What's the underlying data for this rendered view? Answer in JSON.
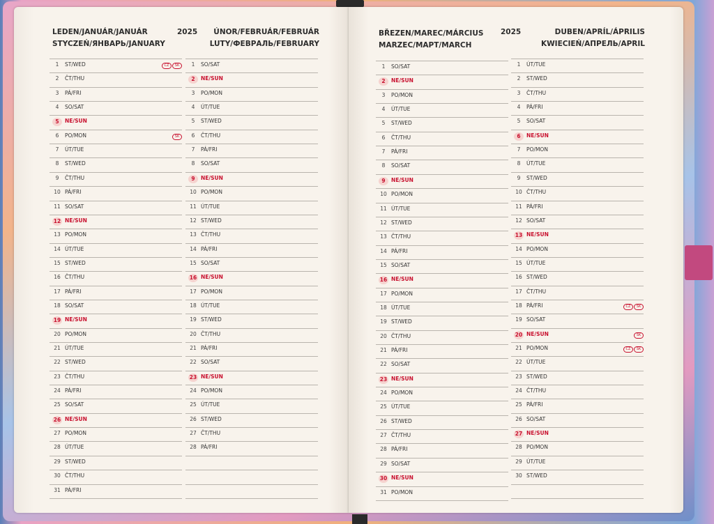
{
  "pages": [
    {
      "year": "2025",
      "months": [
        {
          "title": [
            "LEDEN/JANUÁR/JANUÁR",
            "STYCZEŃ/ЯНВАРЬ/JANUARY"
          ],
          "days": [
            {
              "d": 1,
              "w": "ST/WED",
              "badges": [
                "CZ",
                "SK"
              ]
            },
            {
              "d": 2,
              "w": "ČT/THU"
            },
            {
              "d": 3,
              "w": "PÁ/FRI"
            },
            {
              "d": 4,
              "w": "SO/SAT"
            },
            {
              "d": 5,
              "w": "NE/SUN",
              "red": true
            },
            {
              "d": 6,
              "w": "PO/MON",
              "badges": [
                "SK"
              ]
            },
            {
              "d": 7,
              "w": "ÚT/TUE"
            },
            {
              "d": 8,
              "w": "ST/WED"
            },
            {
              "d": 9,
              "w": "ČT/THU"
            },
            {
              "d": 10,
              "w": "PÁ/FRI"
            },
            {
              "d": 11,
              "w": "SO/SAT"
            },
            {
              "d": 12,
              "w": "NE/SUN",
              "red": true
            },
            {
              "d": 13,
              "w": "PO/MON"
            },
            {
              "d": 14,
              "w": "ÚT/TUE"
            },
            {
              "d": 15,
              "w": "ST/WED"
            },
            {
              "d": 16,
              "w": "ČT/THU"
            },
            {
              "d": 17,
              "w": "PÁ/FRI"
            },
            {
              "d": 18,
              "w": "SO/SAT"
            },
            {
              "d": 19,
              "w": "NE/SUN",
              "red": true
            },
            {
              "d": 20,
              "w": "PO/MON"
            },
            {
              "d": 21,
              "w": "ÚT/TUE"
            },
            {
              "d": 22,
              "w": "ST/WED"
            },
            {
              "d": 23,
              "w": "ČT/THU"
            },
            {
              "d": 24,
              "w": "PÁ/FRI"
            },
            {
              "d": 25,
              "w": "SO/SAT"
            },
            {
              "d": 26,
              "w": "NE/SUN",
              "red": true
            },
            {
              "d": 27,
              "w": "PO/MON"
            },
            {
              "d": 28,
              "w": "ÚT/TUE"
            },
            {
              "d": 29,
              "w": "ST/WED"
            },
            {
              "d": 30,
              "w": "ČT/THU"
            },
            {
              "d": 31,
              "w": "PÁ/FRI"
            }
          ]
        },
        {
          "title": [
            "ÚNOR/FEBRUÁR/FEBRUÁR",
            "LUTY/ФЕВРАЛЬ/FEBRUARY"
          ],
          "days": [
            {
              "d": 1,
              "w": "SO/SAT"
            },
            {
              "d": 2,
              "w": "NE/SUN",
              "red": true
            },
            {
              "d": 3,
              "w": "PO/MON"
            },
            {
              "d": 4,
              "w": "ÚT/TUE"
            },
            {
              "d": 5,
              "w": "ST/WED"
            },
            {
              "d": 6,
              "w": "ČT/THU"
            },
            {
              "d": 7,
              "w": "PÁ/FRI"
            },
            {
              "d": 8,
              "w": "SO/SAT"
            },
            {
              "d": 9,
              "w": "NE/SUN",
              "red": true
            },
            {
              "d": 10,
              "w": "PO/MON"
            },
            {
              "d": 11,
              "w": "ÚT/TUE"
            },
            {
              "d": 12,
              "w": "ST/WED"
            },
            {
              "d": 13,
              "w": "ČT/THU"
            },
            {
              "d": 14,
              "w": "PÁ/FRI"
            },
            {
              "d": 15,
              "w": "SO/SAT"
            },
            {
              "d": 16,
              "w": "NE/SUN",
              "red": true
            },
            {
              "d": 17,
              "w": "PO/MON"
            },
            {
              "d": 18,
              "w": "ÚT/TUE"
            },
            {
              "d": 19,
              "w": "ST/WED"
            },
            {
              "d": 20,
              "w": "ČT/THU"
            },
            {
              "d": 21,
              "w": "PÁ/FRI"
            },
            {
              "d": 22,
              "w": "SO/SAT"
            },
            {
              "d": 23,
              "w": "NE/SUN",
              "red": true
            },
            {
              "d": 24,
              "w": "PO/MON"
            },
            {
              "d": 25,
              "w": "ÚT/TUE"
            },
            {
              "d": 26,
              "w": "ST/WED"
            },
            {
              "d": 27,
              "w": "ČT/THU"
            },
            {
              "d": 28,
              "w": "PÁ/FRI"
            }
          ]
        }
      ]
    },
    {
      "year": "2025",
      "months": [
        {
          "title": [
            "BŘEZEN/MAREC/MÁRCIUS",
            "MARZEC/МАРТ/MARCH"
          ],
          "days": [
            {
              "d": 1,
              "w": "SO/SAT"
            },
            {
              "d": 2,
              "w": "NE/SUN",
              "red": true
            },
            {
              "d": 3,
              "w": "PO/MON"
            },
            {
              "d": 4,
              "w": "ÚT/TUE"
            },
            {
              "d": 5,
              "w": "ST/WED"
            },
            {
              "d": 6,
              "w": "ČT/THU"
            },
            {
              "d": 7,
              "w": "PÁ/FRI"
            },
            {
              "d": 8,
              "w": "SO/SAT"
            },
            {
              "d": 9,
              "w": "NE/SUN",
              "red": true
            },
            {
              "d": 10,
              "w": "PO/MON"
            },
            {
              "d": 11,
              "w": "ÚT/TUE"
            },
            {
              "d": 12,
              "w": "ST/WED"
            },
            {
              "d": 13,
              "w": "ČT/THU"
            },
            {
              "d": 14,
              "w": "PÁ/FRI"
            },
            {
              "d": 15,
              "w": "SO/SAT"
            },
            {
              "d": 16,
              "w": "NE/SUN",
              "red": true
            },
            {
              "d": 17,
              "w": "PO/MON"
            },
            {
              "d": 18,
              "w": "ÚT/TUE"
            },
            {
              "d": 19,
              "w": "ST/WED"
            },
            {
              "d": 20,
              "w": "ČT/THU"
            },
            {
              "d": 21,
              "w": "PÁ/FRI"
            },
            {
              "d": 22,
              "w": "SO/SAT"
            },
            {
              "d": 23,
              "w": "NE/SUN",
              "red": true
            },
            {
              "d": 24,
              "w": "PO/MON"
            },
            {
              "d": 25,
              "w": "ÚT/TUE"
            },
            {
              "d": 26,
              "w": "ST/WED"
            },
            {
              "d": 27,
              "w": "ČT/THU"
            },
            {
              "d": 28,
              "w": "PÁ/FRI"
            },
            {
              "d": 29,
              "w": "SO/SAT"
            },
            {
              "d": 30,
              "w": "NE/SUN",
              "red": true
            },
            {
              "d": 31,
              "w": "PO/MON"
            }
          ]
        },
        {
          "title": [
            "DUBEN/APRÍL/ÁPRILIS",
            "KWIECIEŃ/АПРЕЛЬ/APRIL"
          ],
          "days": [
            {
              "d": 1,
              "w": "ÚT/TUE"
            },
            {
              "d": 2,
              "w": "ST/WED"
            },
            {
              "d": 3,
              "w": "ČT/THU"
            },
            {
              "d": 4,
              "w": "PÁ/FRI"
            },
            {
              "d": 5,
              "w": "SO/SAT"
            },
            {
              "d": 6,
              "w": "NE/SUN",
              "red": true
            },
            {
              "d": 7,
              "w": "PO/MON"
            },
            {
              "d": 8,
              "w": "ÚT/TUE"
            },
            {
              "d": 9,
              "w": "ST/WED"
            },
            {
              "d": 10,
              "w": "ČT/THU"
            },
            {
              "d": 11,
              "w": "PÁ/FRI"
            },
            {
              "d": 12,
              "w": "SO/SAT"
            },
            {
              "d": 13,
              "w": "NE/SUN",
              "red": true
            },
            {
              "d": 14,
              "w": "PO/MON"
            },
            {
              "d": 15,
              "w": "ÚT/TUE"
            },
            {
              "d": 16,
              "w": "ST/WED"
            },
            {
              "d": 17,
              "w": "ČT/THU"
            },
            {
              "d": 18,
              "w": "PÁ/FRI",
              "badges": [
                "CZ",
                "SK"
              ]
            },
            {
              "d": 19,
              "w": "SO/SAT"
            },
            {
              "d": 20,
              "w": "NE/SUN",
              "red": true,
              "badges": [
                "SK"
              ]
            },
            {
              "d": 21,
              "w": "PO/MON",
              "badges": [
                "CZ",
                "SK"
              ]
            },
            {
              "d": 22,
              "w": "ÚT/TUE"
            },
            {
              "d": 23,
              "w": "ST/WED"
            },
            {
              "d": 24,
              "w": "ČT/THU"
            },
            {
              "d": 25,
              "w": "PÁ/FRI"
            },
            {
              "d": 26,
              "w": "SO/SAT"
            },
            {
              "d": 27,
              "w": "NE/SUN",
              "red": true
            },
            {
              "d": 28,
              "w": "PO/MON"
            },
            {
              "d": 29,
              "w": "ÚT/TUE"
            },
            {
              "d": 30,
              "w": "ST/WED"
            }
          ]
        }
      ]
    }
  ]
}
